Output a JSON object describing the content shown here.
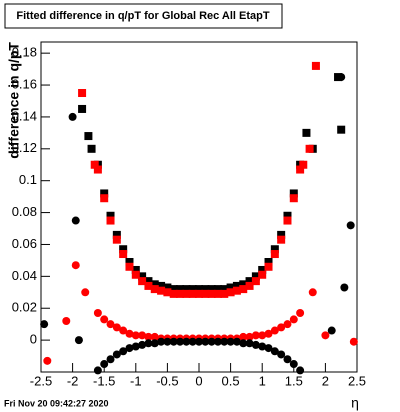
{
  "chart_data": {
    "type": "scatter",
    "title": "Fitted difference in q/pT for Global Rec All EtapT",
    "y_label": "difference in q/pT",
    "x_label": "η",
    "footer": "Fri Nov 20 09:42:27 2020",
    "xlim": [
      -2.5,
      2.5
    ],
    "ylim": [
      -0.02,
      0.187
    ],
    "xticks": [
      -2.5,
      -2,
      -1.5,
      -1,
      -0.5,
      0,
      0.5,
      1,
      1.5,
      2,
      2.5
    ],
    "yticks": [
      0,
      0.02,
      0.04,
      0.06,
      0.08,
      0.1,
      0.12,
      0.14,
      0.16,
      0.18
    ],
    "series": [
      {
        "color": "#000000",
        "marker": "square",
        "x": [
          -1.85,
          -1.75,
          -1.7,
          -1.6,
          -1.5,
          -1.4,
          -1.3,
          -1.2,
          -1.1,
          -1.0,
          -0.9,
          -0.8,
          -0.7,
          -0.6,
          -0.5,
          -0.4,
          -0.3,
          -0.2,
          -0.1,
          0,
          0.1,
          0.2,
          0.3,
          0.4,
          0.5,
          0.6,
          0.7,
          0.8,
          0.9,
          1.0,
          1.1,
          1.2,
          1.3,
          1.4,
          1.5,
          1.6,
          1.7,
          1.8,
          2.2,
          2.25
        ],
        "values": [
          0.145,
          0.128,
          0.12,
          0.11,
          0.092,
          0.078,
          0.066,
          0.057,
          0.049,
          0.044,
          0.04,
          0.037,
          0.035,
          0.034,
          0.033,
          0.032,
          0.032,
          0.032,
          0.032,
          0.032,
          0.032,
          0.032,
          0.032,
          0.032,
          0.033,
          0.034,
          0.035,
          0.037,
          0.04,
          0.044,
          0.049,
          0.057,
          0.066,
          0.078,
          0.092,
          0.11,
          0.13,
          0.12,
          0.165,
          0.132
        ]
      },
      {
        "color": "#ff0000",
        "marker": "square",
        "x": [
          -1.85,
          -1.65,
          -1.6,
          -1.5,
          -1.4,
          -1.3,
          -1.2,
          -1.1,
          -1.0,
          -0.9,
          -0.8,
          -0.7,
          -0.6,
          -0.5,
          -0.4,
          -0.3,
          -0.2,
          -0.1,
          0,
          0.1,
          0.2,
          0.3,
          0.4,
          0.5,
          0.6,
          0.7,
          0.8,
          0.9,
          1.0,
          1.1,
          1.2,
          1.3,
          1.4,
          1.5,
          1.6,
          1.65,
          1.75,
          1.85
        ],
        "values": [
          0.155,
          0.11,
          0.107,
          0.089,
          0.075,
          0.063,
          0.054,
          0.046,
          0.041,
          0.037,
          0.034,
          0.032,
          0.031,
          0.03,
          0.029,
          0.029,
          0.029,
          0.029,
          0.029,
          0.029,
          0.029,
          0.029,
          0.029,
          0.03,
          0.031,
          0.032,
          0.034,
          0.037,
          0.041,
          0.046,
          0.054,
          0.063,
          0.075,
          0.089,
          0.107,
          0.11,
          0.12,
          0.172
        ]
      },
      {
        "color": "#ff0000",
        "marker": "circle",
        "x": [
          -2.4,
          -2.1,
          -1.95,
          -1.8,
          -1.6,
          -1.5,
          -1.4,
          -1.3,
          -1.2,
          -1.1,
          -1.0,
          -0.9,
          -0.8,
          -0.7,
          -0.6,
          -0.5,
          -0.4,
          -0.3,
          -0.2,
          -0.1,
          0,
          0.1,
          0.2,
          0.3,
          0.4,
          0.5,
          0.6,
          0.7,
          0.8,
          0.9,
          1.0,
          1.1,
          1.2,
          1.3,
          1.4,
          1.5,
          1.6,
          1.8,
          2.0,
          2.45
        ],
        "values": [
          -0.013,
          0.012,
          0.047,
          0.03,
          0.017,
          0.013,
          0.01,
          0.008,
          0.006,
          0.004,
          0.003,
          0.003,
          0.002,
          0.002,
          0.001,
          0.001,
          0.001,
          0.001,
          0.001,
          0.001,
          0.001,
          0.001,
          0.001,
          0.001,
          0.001,
          0.001,
          0.001,
          0.002,
          0.002,
          0.003,
          0.003,
          0.004,
          0.006,
          0.008,
          0.01,
          0.013,
          0.017,
          0.03,
          0.003,
          -0.001
        ]
      },
      {
        "color": "#000000",
        "marker": "circle",
        "x": [
          -2.45,
          -2.0,
          -1.95,
          -1.9,
          -1.6,
          -1.5,
          -1.4,
          -1.3,
          -1.2,
          -1.1,
          -1.0,
          -0.9,
          -0.8,
          -0.7,
          -0.6,
          -0.5,
          -0.4,
          -0.3,
          -0.2,
          -0.1,
          0,
          0.1,
          0.2,
          0.3,
          0.4,
          0.5,
          0.6,
          0.7,
          0.8,
          0.9,
          1.0,
          1.1,
          1.2,
          1.3,
          1.4,
          1.5,
          1.6,
          2.1,
          2.3,
          2.4,
          2.25
        ],
        "values": [
          0.01,
          0.14,
          0.075,
          0.0,
          -0.019,
          -0.015,
          -0.012,
          -0.009,
          -0.007,
          -0.005,
          -0.004,
          -0.003,
          -0.002,
          -0.002,
          -0.001,
          -0.001,
          -0.001,
          -0.001,
          -0.001,
          -0.001,
          -0.001,
          -0.001,
          -0.001,
          -0.001,
          -0.001,
          -0.001,
          -0.001,
          -0.002,
          -0.002,
          -0.003,
          -0.004,
          -0.005,
          -0.007,
          -0.009,
          -0.012,
          -0.015,
          -0.019,
          0.006,
          0.033,
          0.072,
          0.165
        ]
      }
    ]
  }
}
